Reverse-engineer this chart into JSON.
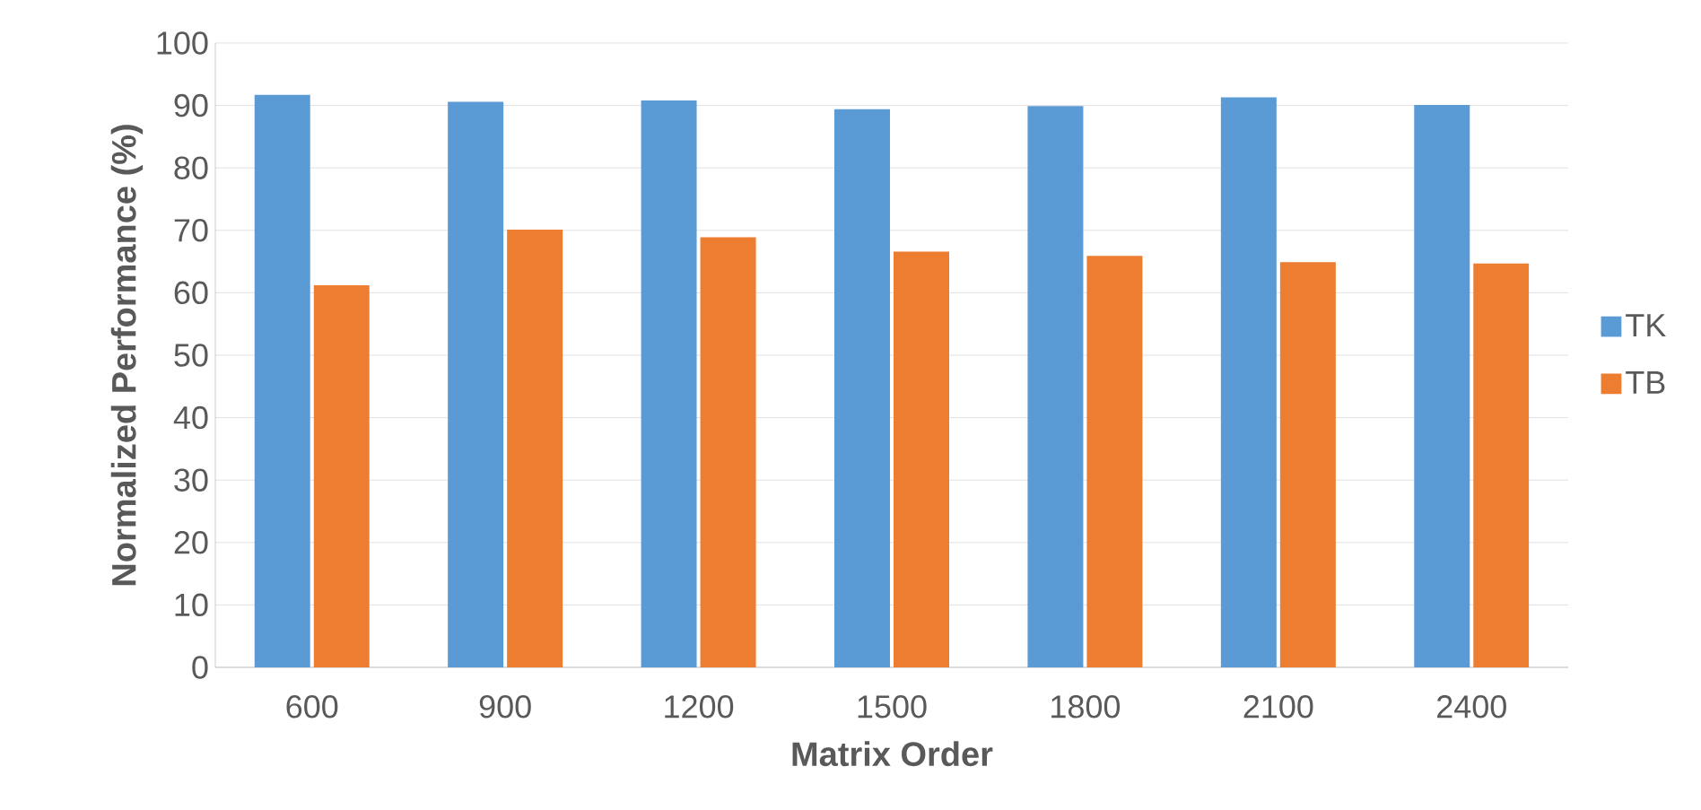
{
  "chart_data": {
    "type": "bar",
    "xlabel": "Matrix Order",
    "ylabel": "Normalized Performance (%)",
    "categories": [
      "600",
      "900",
      "1200",
      "1500",
      "1800",
      "2100",
      "2400"
    ],
    "series": [
      {
        "name": "TK",
        "color": "#5b9bd5",
        "values": [
          91.7,
          90.6,
          90.8,
          89.4,
          89.9,
          91.3,
          90.1
        ]
      },
      {
        "name": "TB",
        "color": "#ed7d31",
        "values": [
          61.2,
          70.1,
          68.9,
          66.6,
          65.9,
          64.9,
          64.7
        ]
      }
    ],
    "ylim": [
      0,
      100
    ],
    "yticks": [
      0,
      10,
      20,
      30,
      40,
      50,
      60,
      70,
      80,
      90,
      100
    ],
    "grid": "y",
    "legend": "right"
  }
}
